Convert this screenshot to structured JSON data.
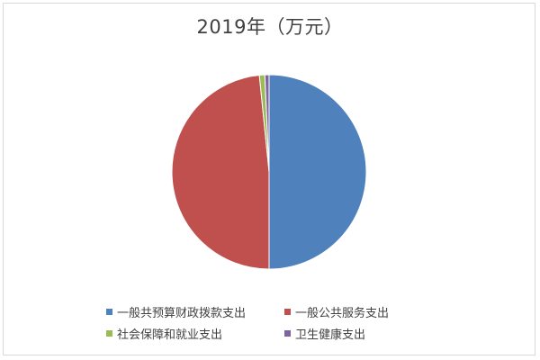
{
  "chart_data": {
    "type": "pie",
    "title": "2019年（万元）",
    "series": [
      {
        "name": "一般共预算财政拨款支出",
        "value": 50.0,
        "color": "#4f81bd"
      },
      {
        "name": "一般公共服务支出",
        "value": 48.4,
        "color": "#c0504d"
      },
      {
        "name": "社会保障和就业支出",
        "value": 0.9,
        "color": "#9bbb59"
      },
      {
        "name": "卫生健康支出",
        "value": 0.7,
        "color": "#8064a2"
      }
    ],
    "legend_position": "bottom"
  }
}
